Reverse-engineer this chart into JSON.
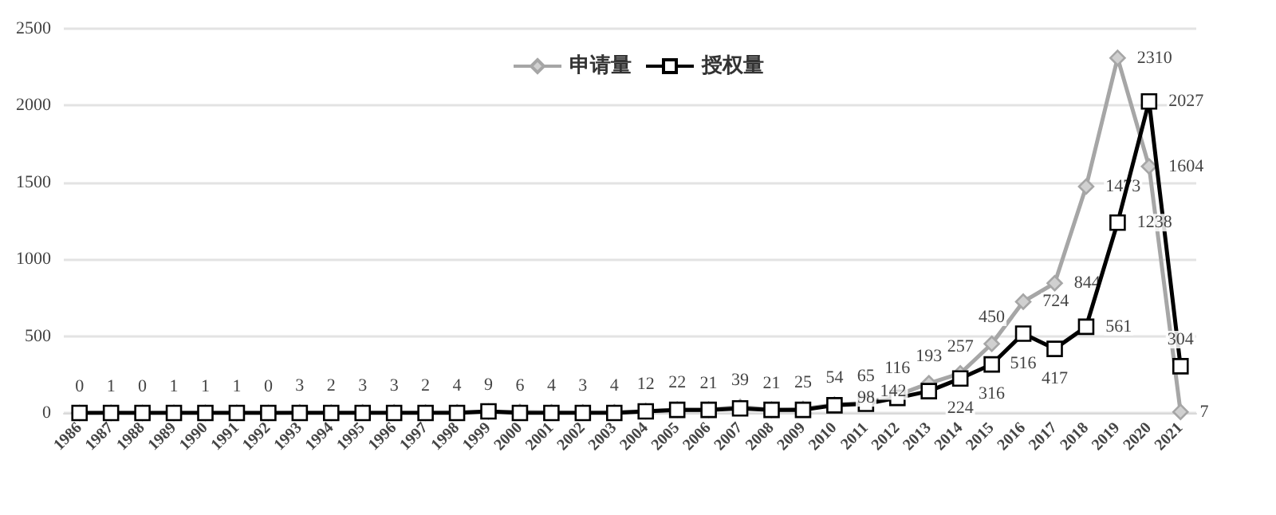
{
  "chart_data": {
    "type": "line",
    "categories": [
      "1986",
      "1987",
      "1988",
      "1989",
      "1990",
      "1991",
      "1992",
      "1993",
      "1994",
      "1995",
      "1996",
      "1997",
      "1998",
      "1999",
      "2000",
      "2001",
      "2002",
      "2003",
      "2004",
      "2005",
      "2006",
      "2007",
      "2008",
      "2009",
      "2010",
      "2011",
      "2012",
      "2013",
      "2014",
      "2015",
      "2016",
      "2017",
      "2018",
      "2019",
      "2020",
      "2021"
    ],
    "series": [
      {
        "name": "申请量",
        "color": "#a6a6a6",
        "marker": "diamond",
        "values": [
          0,
          1,
          0,
          1,
          1,
          1,
          0,
          3,
          2,
          3,
          3,
          2,
          4,
          9,
          6,
          4,
          3,
          4,
          12,
          22,
          21,
          39,
          21,
          25,
          54,
          65,
          116,
          193,
          257,
          450,
          724,
          844,
          1473,
          2310,
          1604,
          7
        ],
        "value_labels": [
          "0",
          "1",
          "0",
          "1",
          "1",
          "1",
          "0",
          "3",
          "2",
          "3",
          "3",
          "2",
          "4",
          "9",
          "6",
          "4",
          "3",
          "4",
          "12",
          "22",
          "21",
          "39",
          "21",
          "25",
          "54",
          "65",
          "116",
          "193",
          "257",
          "450",
          "724",
          "844",
          "1473",
          "2310",
          "1604",
          "7"
        ]
      },
      {
        "name": "授权量",
        "color": "#000000",
        "marker": "square",
        "values": [
          0,
          0,
          0,
          0,
          0,
          0,
          0,
          0,
          0,
          0,
          0,
          0,
          0,
          10,
          0,
          0,
          0,
          0,
          10,
          20,
          20,
          30,
          20,
          20,
          50,
          60,
          98,
          142,
          224,
          316,
          516,
          417,
          561,
          1238,
          2027,
          304
        ],
        "value_labels": [
          null,
          null,
          null,
          null,
          null,
          null,
          null,
          null,
          null,
          null,
          null,
          null,
          null,
          null,
          null,
          null,
          null,
          null,
          null,
          null,
          null,
          null,
          null,
          null,
          null,
          null,
          "98",
          "142",
          "224",
          "316",
          "516",
          "417",
          "561",
          "1238",
          "2027",
          "304"
        ]
      }
    ],
    "ylim": [
      0,
      2500
    ],
    "yticks": [
      0,
      500,
      1000,
      1500,
      2000,
      2500
    ],
    "grid": "y",
    "legend": "top",
    "line_style": "solid"
  }
}
